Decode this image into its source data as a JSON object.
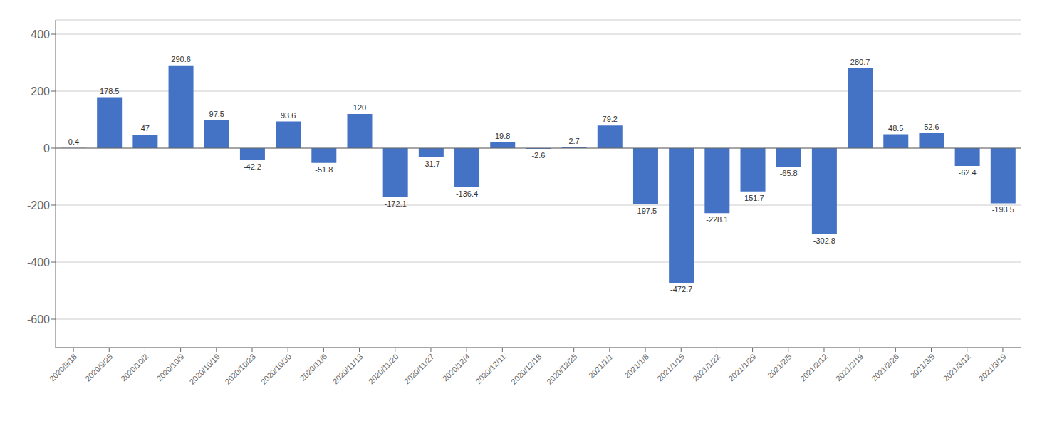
{
  "chart_data": {
    "type": "bar",
    "categories": [
      "2020/9/18",
      "2020/9/25",
      "2020/10/2",
      "2020/10/9",
      "2020/10/16",
      "2020/10/23",
      "2020/10/30",
      "2020/11/6",
      "2020/11/13",
      "2020/11/20",
      "2020/11/27",
      "2020/12/4",
      "2020/12/11",
      "2020/12/18",
      "2020/12/25",
      "2021/1/1",
      "2021/1/8",
      "2021/1/15",
      "2021/1/22",
      "2021/1/29",
      "2021/2/5",
      "2021/2/12",
      "2021/2/19",
      "2021/2/26",
      "2021/3/5",
      "2021/3/12",
      "2021/3/19"
    ],
    "values": [
      0.4,
      178.5,
      47,
      290.6,
      97.5,
      -42.2,
      93.6,
      -51.8,
      120,
      -172.1,
      -31.7,
      -136.4,
      19.8,
      -2.6,
      2.7,
      79.2,
      -197.5,
      -472.7,
      -228.1,
      -151.7,
      -65.8,
      -302.8,
      280.7,
      48.5,
      52.6,
      -62.4,
      -193.5
    ],
    "color": "#4472C4",
    "ylim": [
      -700,
      450
    ],
    "yticks": [
      -600,
      -400,
      -200,
      0,
      200,
      400
    ],
    "grid": true,
    "data_labels": true
  }
}
